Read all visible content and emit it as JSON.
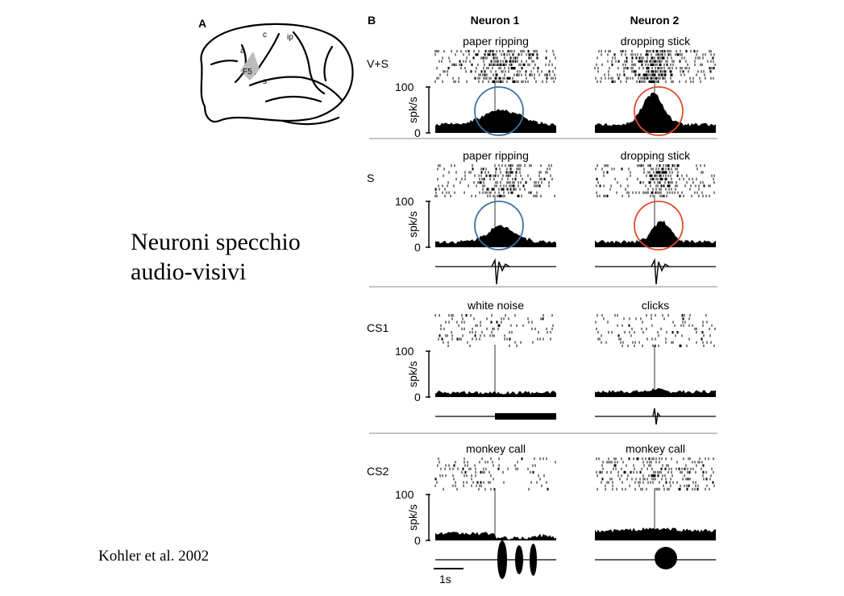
{
  "slide": {
    "title_lines": [
      "Neuroni specchio",
      "audio-visivi"
    ],
    "citation": "Kohler et al. 2002"
  },
  "panel_a": {
    "label": "A",
    "area_label": "F5",
    "sulcus_labels": {
      "arcuate": "a",
      "central": "c",
      "intraparietal": "ip",
      "sylvian": "s"
    },
    "area_color": "#bcbcbc"
  },
  "panel_b": {
    "label": "B",
    "column_headers": [
      "Neuron 1",
      "Neuron 2"
    ],
    "y_axis_label": "spk/s",
    "y_tick_max": "100",
    "y_tick_min": "0",
    "scale_bar_label": "1s",
    "highlight_colors": {
      "neuron1": "#3e6fa3",
      "neuron2": "#e04a2a"
    },
    "conditions": [
      {
        "label": "V+S",
        "stimuli": [
          "paper ripping",
          "dropping stick"
        ],
        "has_sound_trace": false,
        "highlighted": true
      },
      {
        "label": "S",
        "stimuli": [
          "paper ripping",
          "dropping stick"
        ],
        "has_sound_trace": true,
        "highlighted": true
      },
      {
        "label": "CS1",
        "stimuli": [
          "white noise",
          "clicks"
        ],
        "has_sound_trace": true,
        "highlighted": false
      },
      {
        "label": "CS2",
        "stimuli": [
          "monkey call",
          "monkey call"
        ],
        "has_sound_trace": true,
        "highlighted": false
      }
    ]
  }
}
